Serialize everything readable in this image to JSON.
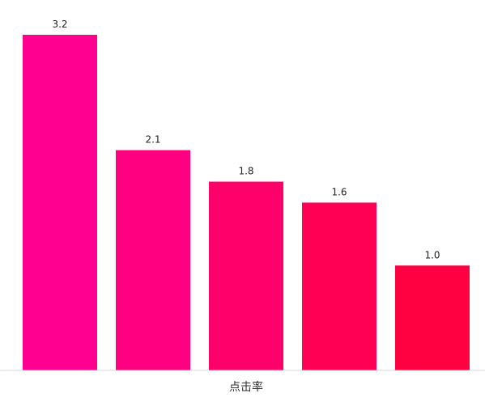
{
  "chart_data": {
    "type": "bar",
    "categories": [
      "",
      "",
      "",
      "",
      ""
    ],
    "values": [
      3.2,
      2.1,
      1.8,
      1.6,
      1.0
    ],
    "value_labels": [
      "3.2",
      "2.1",
      "1.8",
      "1.6",
      "1.0"
    ],
    "xlabel": "点击率",
    "ylabel": "",
    "ylim": [
      0,
      3.2
    ],
    "grid": false,
    "legend": "none",
    "colors": [
      "#ff0090",
      "#ff0080",
      "#ff006a",
      "#ff0055",
      "#ff0040"
    ],
    "axis_color": "#d9d9d9"
  }
}
